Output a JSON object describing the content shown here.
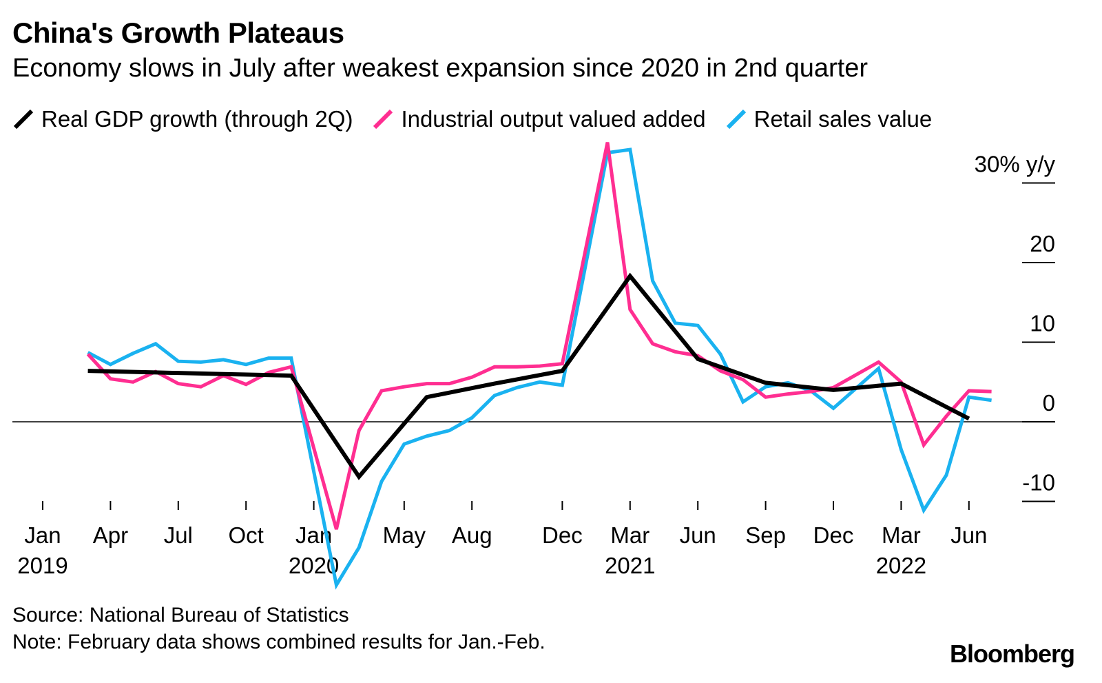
{
  "title": "China's Growth Plateaus",
  "subtitle": "Economy slows in July after weakest expansion since 2020 in 2nd quarter",
  "source": "Source: National Bureau of Statistics",
  "note": "Note: February data shows combined results for Jan.-Feb.",
  "logo": "Bloomberg",
  "chart_data": {
    "type": "line",
    "x_unit": "months since Jan 2019",
    "ylabel": "30% y/y",
    "ylim": [
      -10,
      30
    ],
    "yticks": [
      {
        "value": 30,
        "label": "30% y/y"
      },
      {
        "value": 20,
        "label": "20"
      },
      {
        "value": 10,
        "label": "10"
      },
      {
        "value": 0,
        "label": "0"
      },
      {
        "value": -10,
        "label": "-10"
      }
    ],
    "xticks": [
      {
        "x": 0,
        "label": "Jan",
        "year": "2019"
      },
      {
        "x": 3,
        "label": "Apr",
        "year": ""
      },
      {
        "x": 6,
        "label": "Jul",
        "year": ""
      },
      {
        "x": 9,
        "label": "Oct",
        "year": ""
      },
      {
        "x": 12,
        "label": "Jan",
        "year": "2020"
      },
      {
        "x": 16,
        "label": "May",
        "year": ""
      },
      {
        "x": 19,
        "label": "Aug",
        "year": ""
      },
      {
        "x": 23,
        "label": "Dec",
        "year": ""
      },
      {
        "x": 26,
        "label": "Mar",
        "year": "2021"
      },
      {
        "x": 29,
        "label": "Jun",
        "year": ""
      },
      {
        "x": 32,
        "label": "Sep",
        "year": ""
      },
      {
        "x": 35,
        "label": "Dec",
        "year": ""
      },
      {
        "x": 38,
        "label": "Mar",
        "year": "2022"
      },
      {
        "x": 41,
        "label": "Jun",
        "year": ""
      }
    ],
    "grid": false,
    "legend_position": "top-left",
    "series": [
      {
        "name": "Real GDP growth (through 2Q)",
        "color": "#000000",
        "x": [
          2,
          5,
          8,
          11,
          14,
          17,
          20,
          23,
          26,
          29,
          32,
          35,
          38,
          41
        ],
        "y": [
          6.4,
          6.2,
          6.0,
          5.8,
          -6.9,
          3.1,
          4.8,
          6.4,
          18.3,
          7.9,
          4.9,
          4.0,
          4.8,
          0.4
        ]
      },
      {
        "name": "Industrial output valued added",
        "color": "#ff2e91",
        "x": [
          2,
          3,
          4,
          5,
          6,
          7,
          8,
          9,
          10,
          11,
          13,
          14,
          15,
          16,
          17,
          18,
          19,
          20,
          21,
          22,
          23,
          25,
          26,
          27,
          28,
          29,
          30,
          31,
          32,
          33,
          34,
          35,
          37,
          38,
          39,
          40,
          41,
          42
        ],
        "y": [
          8.5,
          5.4,
          5.0,
          6.3,
          4.8,
          4.4,
          5.8,
          4.7,
          6.2,
          6.9,
          -13.5,
          -1.1,
          3.9,
          4.4,
          4.8,
          4.8,
          5.6,
          6.9,
          6.9,
          7.0,
          7.3,
          35.1,
          14.1,
          9.8,
          8.8,
          8.3,
          6.4,
          5.3,
          3.1,
          3.5,
          3.8,
          4.3,
          7.5,
          5.0,
          -2.9,
          0.7,
          3.9,
          3.8
        ]
      },
      {
        "name": "Retail sales value",
        "color": "#1ab2f0",
        "x": [
          2,
          3,
          4,
          5,
          6,
          7,
          8,
          9,
          10,
          11,
          13,
          14,
          15,
          16,
          17,
          18,
          19,
          20,
          21,
          22,
          23,
          25,
          26,
          27,
          28,
          29,
          30,
          31,
          32,
          33,
          34,
          35,
          37,
          38,
          39,
          40,
          41,
          42
        ],
        "y": [
          8.7,
          7.2,
          8.6,
          9.8,
          7.6,
          7.5,
          7.8,
          7.2,
          8.0,
          8.0,
          -20.5,
          -15.8,
          -7.5,
          -2.8,
          -1.8,
          -1.1,
          0.5,
          3.3,
          4.3,
          5.0,
          4.6,
          33.8,
          34.2,
          17.7,
          12.4,
          12.1,
          8.5,
          2.5,
          4.4,
          4.9,
          3.9,
          1.7,
          6.7,
          -3.5,
          -11.1,
          -6.7,
          3.1,
          2.7
        ]
      }
    ]
  }
}
